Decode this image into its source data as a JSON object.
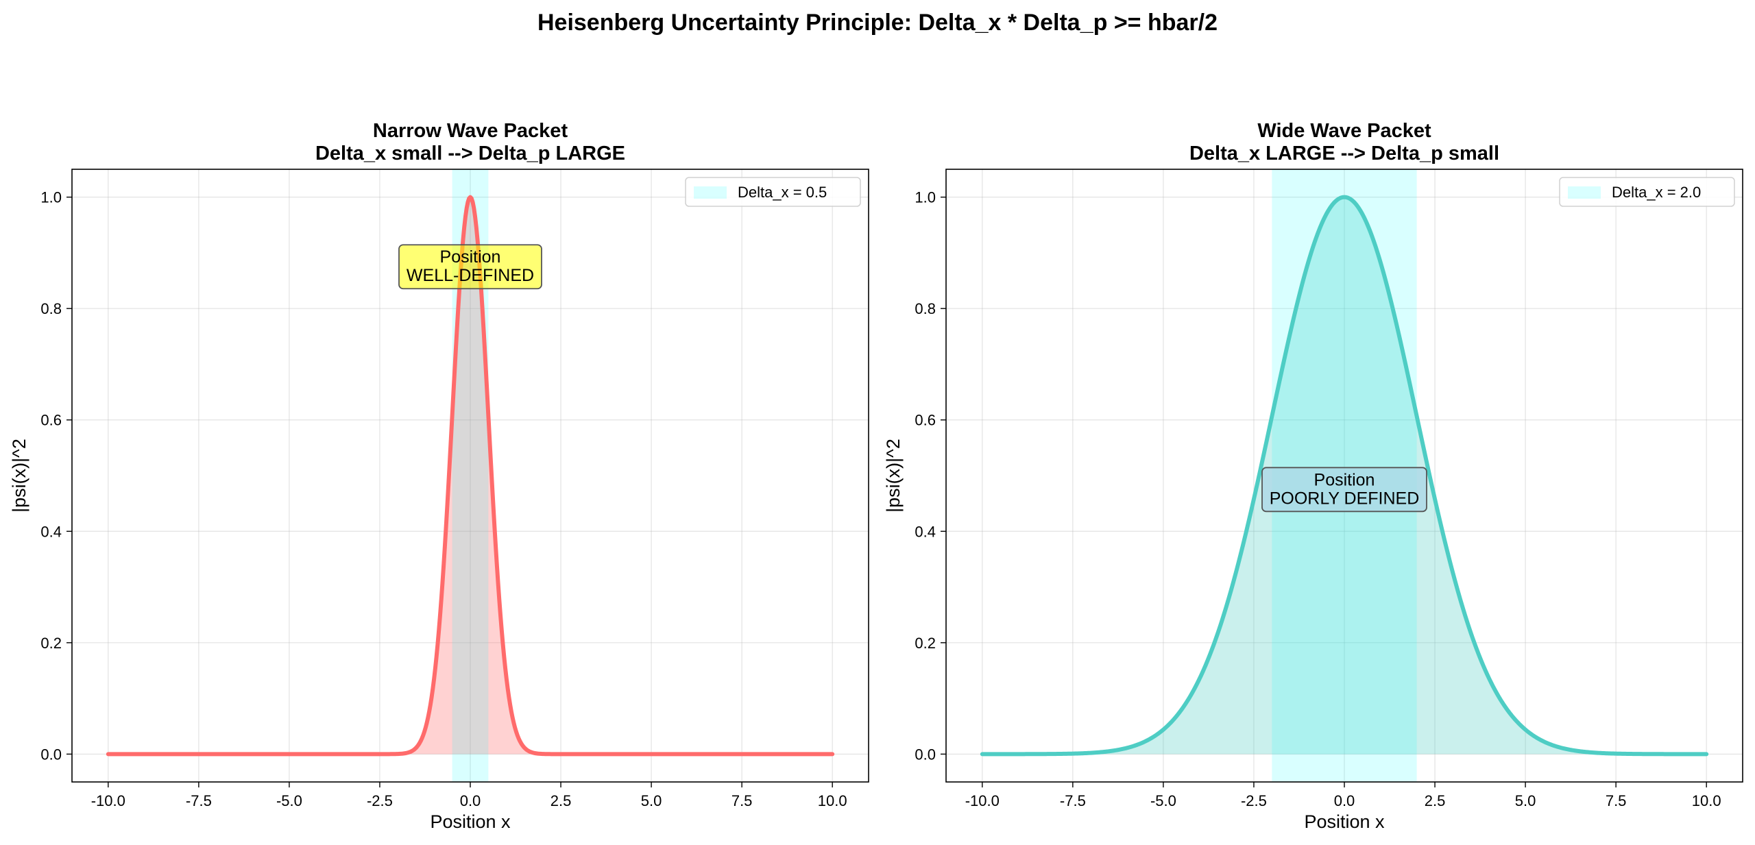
{
  "figure": {
    "title": "Heisenberg Uncertainty Principle:  Delta_x * Delta_p >= hbar/2"
  },
  "chart_data": [
    {
      "type": "area",
      "title_lines": [
        "Narrow Wave Packet",
        "Delta_x small  -->  Delta_p LARGE"
      ],
      "xlabel": "Position x",
      "ylabel": "|psi(x)|^2",
      "xlim": [
        -11,
        11
      ],
      "ylim": [
        -0.05,
        1.05
      ],
      "xticks": [
        -10,
        -7.5,
        -5,
        -2.5,
        0,
        2.5,
        5,
        7.5,
        10
      ],
      "xtick_labels": [
        "-10.0",
        "-7.5",
        "-5.0",
        "-2.5",
        "0.0",
        "2.5",
        "5.0",
        "7.5",
        "10.0"
      ],
      "yticks": [
        0,
        0.2,
        0.4,
        0.6,
        0.8,
        1.0
      ],
      "ytick_labels": [
        "0.0",
        "0.2",
        "0.4",
        "0.6",
        "0.8",
        "1.0"
      ],
      "grid": true,
      "series": {
        "function": "exp(-x^2/(2*sigma^2))",
        "sigma": 0.5,
        "x_range": [
          -10,
          10
        ],
        "line_color": "#ff6b6b",
        "fill_color": "#ff6b6b",
        "fill_alpha": 0.3
      },
      "band": {
        "x_range": [
          -0.5,
          0.5
        ],
        "color": "#00ffff",
        "alpha": 0.15,
        "label": "Delta_x = 0.5"
      },
      "legend": {
        "position": "upper-right"
      },
      "annotation": {
        "lines": [
          "Position",
          "WELL-DEFINED"
        ],
        "x": 0,
        "y": 0.875,
        "box_color": "#ffff00",
        "box_alpha": 0.55
      }
    },
    {
      "type": "area",
      "title_lines": [
        "Wide Wave Packet",
        "Delta_x LARGE  -->  Delta_p small"
      ],
      "xlabel": "Position x",
      "ylabel": "|psi(x)|^2",
      "xlim": [
        -11,
        11
      ],
      "ylim": [
        -0.05,
        1.05
      ],
      "xticks": [
        -10,
        -7.5,
        -5,
        -2.5,
        0,
        2.5,
        5,
        7.5,
        10
      ],
      "xtick_labels": [
        "-10.0",
        "-7.5",
        "-5.0",
        "-2.5",
        "0.0",
        "2.5",
        "5.0",
        "7.5",
        "10.0"
      ],
      "yticks": [
        0,
        0.2,
        0.4,
        0.6,
        0.8,
        1.0
      ],
      "ytick_labels": [
        "0.0",
        "0.2",
        "0.4",
        "0.6",
        "0.8",
        "1.0"
      ],
      "grid": true,
      "series": {
        "function": "exp(-x^2/(2*sigma^2))",
        "sigma": 2.0,
        "x_range": [
          -10,
          10
        ],
        "line_color": "#4ecdc4",
        "fill_color": "#4ecdc4",
        "fill_alpha": 0.3
      },
      "band": {
        "x_range": [
          -2,
          2
        ],
        "color": "#00ffff",
        "alpha": 0.15,
        "label": "Delta_x = 2.0"
      },
      "legend": {
        "position": "upper-right"
      },
      "annotation": {
        "lines": [
          "Position",
          "POORLY DEFINED"
        ],
        "x": 0,
        "y": 0.475,
        "box_color": "#add8e6",
        "box_alpha": 0.8
      }
    }
  ]
}
